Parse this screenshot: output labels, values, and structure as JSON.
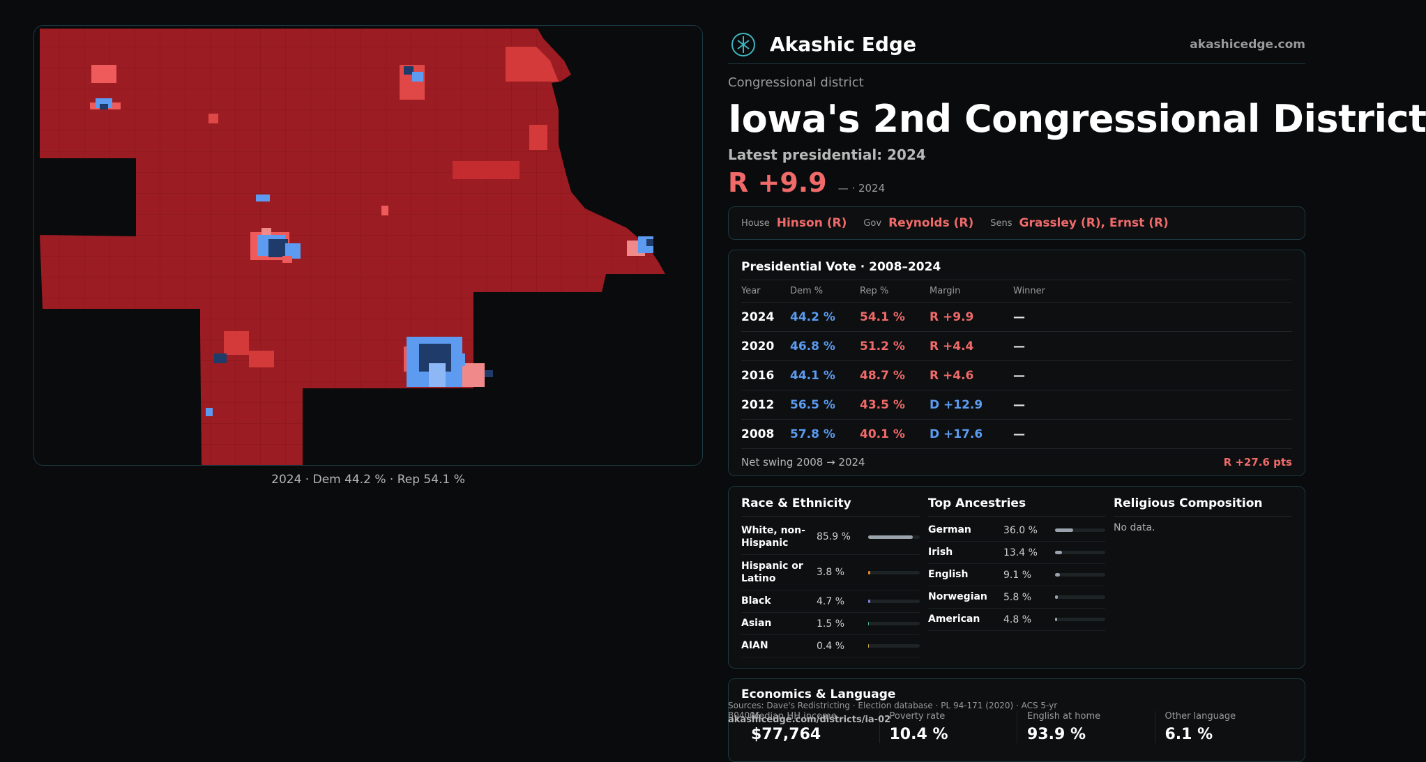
{
  "map": {
    "caption": "2024 · Dem 44.2 % · Rep 54.1 %",
    "colors": {
      "rep_dark": "#9b1c22",
      "rep_light": "#ef5a5a",
      "dem_dark": "#1e3b6a",
      "dem_light": "#5d9bf0",
      "pink": "#f08a8a"
    }
  },
  "header": {
    "brand": "Akashic Edge",
    "domain": "akashicedge.com"
  },
  "district": {
    "kicker": "Congressional district",
    "title": "Iowa's 2nd Congressional District",
    "latest": "Latest presidential: 2024",
    "margin": "R +9.9",
    "margin_sub": "— · 2024"
  },
  "officials": {
    "house_label": "House",
    "house": "Hinson (R)",
    "gov_label": "Gov",
    "gov": "Reynolds (R)",
    "sens_label": "Sens",
    "sens": "Grassley (R), Ernst (R)"
  },
  "presidential": {
    "title": "Presidential Vote · 2008–2024",
    "columns": [
      "Year",
      "Dem %",
      "Rep %",
      "Margin",
      "Winner"
    ],
    "rows": [
      {
        "year": "2024",
        "dem": "44.2 %",
        "rep": "54.1 %",
        "margin": "R +9.9",
        "party": "R",
        "winner": "—"
      },
      {
        "year": "2020",
        "dem": "46.8 %",
        "rep": "51.2 %",
        "margin": "R +4.4",
        "party": "R",
        "winner": "—"
      },
      {
        "year": "2016",
        "dem": "44.1 %",
        "rep": "48.7 %",
        "margin": "R +4.6",
        "party": "R",
        "winner": "—"
      },
      {
        "year": "2012",
        "dem": "56.5 %",
        "rep": "43.5 %",
        "margin": "D +12.9",
        "party": "D",
        "winner": "—"
      },
      {
        "year": "2008",
        "dem": "57.8 %",
        "rep": "40.1 %",
        "margin": "D +17.6",
        "party": "D",
        "winner": "—"
      }
    ],
    "swing_label": "Net swing 2008 → 2024",
    "swing_value": "R +27.6 pts"
  },
  "race": {
    "title": "Race & Ethnicity",
    "rows": [
      {
        "name": "White, non-Hispanic",
        "value": "85.9 %",
        "pct": 85.9,
        "color": "#9aa3ad"
      },
      {
        "name": "Hispanic or Latino",
        "value": "3.8 %",
        "pct": 3.8,
        "color": "#e6892e"
      },
      {
        "name": "Black",
        "value": "4.7 %",
        "pct": 4.7,
        "color": "#7b7fe0"
      },
      {
        "name": "Asian",
        "value": "1.5 %",
        "pct": 1.5,
        "color": "#4fb38a"
      },
      {
        "name": "AIAN",
        "value": "0.4 %",
        "pct": 0.4,
        "color": "#c9a44a"
      }
    ]
  },
  "ancestry": {
    "title": "Top Ancestries",
    "rows": [
      {
        "name": "German",
        "value": "36.0 %",
        "pct": 36.0
      },
      {
        "name": "Irish",
        "value": "13.4 %",
        "pct": 13.4
      },
      {
        "name": "English",
        "value": "9.1 %",
        "pct": 9.1
      },
      {
        "name": "Norwegian",
        "value": "5.8 %",
        "pct": 5.8
      },
      {
        "name": "American",
        "value": "4.8 %",
        "pct": 4.8
      }
    ],
    "bar_color": "#9aa3ad"
  },
  "religion": {
    "title": "Religious Composition",
    "empty": "No data."
  },
  "economics": {
    "title": "Economics & Language",
    "items": [
      {
        "label": "Median HH income",
        "value": "$77,764"
      },
      {
        "label": "Poverty rate",
        "value": "10.4 %"
      },
      {
        "label": "English at home",
        "value": "93.9 %"
      },
      {
        "label": "Other language",
        "value": "6.1 %"
      }
    ]
  },
  "footer": {
    "source": "Sources: Dave's Redistricting · Election database · PL 94-171 (2020) · ACS 5-yr B04006",
    "url": "akashicedge.com/districts/ia-02"
  }
}
